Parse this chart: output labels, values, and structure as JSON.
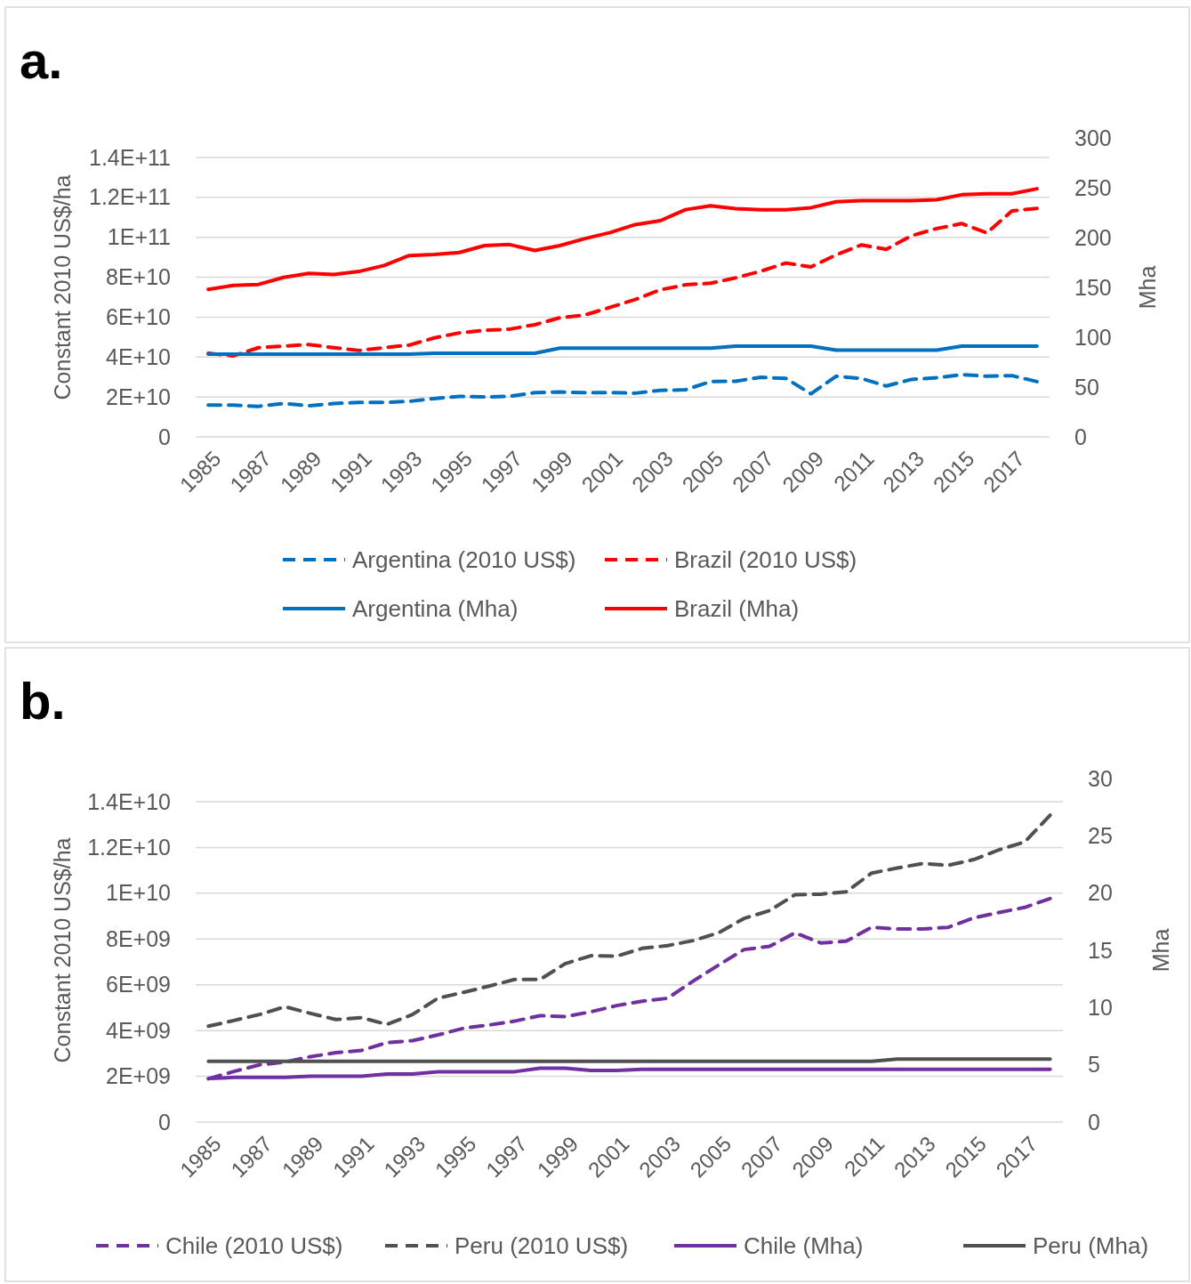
{
  "chart_data": [
    {
      "type": "line",
      "title": "a.",
      "ylabel": "Constant 2010 US$/ha",
      "y2label": "Mha",
      "categories": [
        "1985",
        null,
        "1987",
        null,
        "1989",
        null,
        "1991",
        null,
        "1993",
        null,
        "1995",
        null,
        "1997",
        null,
        "1999",
        null,
        "2001",
        null,
        "2003",
        null,
        "2005",
        null,
        "2007",
        null,
        "2009",
        null,
        "2011",
        null,
        "2013",
        null,
        "2015",
        null,
        "2017",
        null
      ],
      "ylim": [
        0,
        140000000000
      ],
      "yticks": [
        0,
        {
          "value": 20000000000,
          "label": "2E+10"
        },
        {
          "value": 40000000000,
          "label": "4E+10"
        },
        {
          "value": 60000000000,
          "label": "6E+10"
        },
        {
          "value": 80000000000,
          "label": "8E+10"
        },
        {
          "value": 100000000000,
          "label": "1E+11"
        },
        {
          "value": 120000000000,
          "label": "1.2E+11"
        },
        {
          "value": 140000000000,
          "label": "1.4E+11"
        }
      ],
      "y2lim": [
        0,
        300
      ],
      "y2ticks": [
        0,
        50,
        100,
        150,
        200,
        250,
        300
      ],
      "grid": "y",
      "legend": "bottom",
      "marker": "none",
      "series": [
        {
          "name": "Argentina (2010 US$)",
          "color": "#0070c0",
          "line_style": "dashed",
          "values": [
            15900000000,
            15900000000,
            15300000000,
            16700000000,
            15600000000,
            16700000000,
            17300000000,
            17300000000,
            17800000000,
            19200000000,
            20300000000,
            20000000000,
            20300000000,
            22200000000,
            22500000000,
            22200000000,
            22200000000,
            21900000000,
            23300000000,
            23600000000,
            27700000000,
            27900000000,
            29900000000,
            29300000000,
            21600000000,
            30400000000,
            29300000000,
            25500000000,
            28800000000,
            29600000000,
            31200000000,
            30400000000,
            30700000000,
            27700000000
          ]
        },
        {
          "name": "Brazil (2010 US$)",
          "color": "#ff0000",
          "line_style": "dashed",
          "values": [
            41900000000,
            40600000000,
            44700000000,
            45500000000,
            46300000000,
            44700000000,
            43300000000,
            44700000000,
            46000000000,
            49600000000,
            52100000000,
            53400000000,
            54000000000,
            56200000000,
            59700000000,
            61100000000,
            64900000000,
            68800000000,
            73700000000,
            76200000000,
            77000000000,
            79700000000,
            83000000000,
            87100000000,
            85200000000,
            91200000000,
            96200000000,
            94000000000,
            100800000000,
            104400000000,
            106900000000,
            102200000000,
            113200000000,
            114500000000
          ]
        },
        {
          "name": "Argentina (Mha)",
          "color": "#0070c0",
          "line_style": "solid",
          "axis": "y2",
          "values": [
            83,
            83,
            83,
            83,
            83,
            83,
            83,
            83,
            83,
            84,
            84,
            84,
            84,
            84,
            89,
            89,
            89,
            89,
            89,
            89,
            89,
            91,
            91,
            91,
            91,
            87,
            87,
            87,
            87,
            87,
            91,
            91,
            91,
            91
          ]
        },
        {
          "name": "Brazil (Mha)",
          "color": "#ff0000",
          "line_style": "solid",
          "axis": "y2",
          "values": [
            148,
            152,
            153,
            160,
            164,
            163,
            166,
            172,
            182,
            183,
            185,
            192,
            193,
            187,
            192,
            199,
            205,
            213,
            217,
            228,
            232,
            229,
            228,
            228,
            230,
            236,
            237,
            237,
            237,
            238,
            243,
            244,
            244,
            249
          ]
        }
      ]
    },
    {
      "type": "line",
      "title": "b.",
      "ylabel": "Constant 2010 US$/ha",
      "y2label": "Mha",
      "categories": [
        "1985",
        null,
        "1987",
        null,
        "1989",
        null,
        "1991",
        null,
        "1993",
        null,
        "1995",
        null,
        "1997",
        null,
        "1999",
        null,
        "2001",
        null,
        "2003",
        null,
        "2005",
        null,
        "2007",
        null,
        "2009",
        null,
        "2011",
        null,
        "2013",
        null,
        "2015",
        null,
        "2017",
        null
      ],
      "ylim": [
        0,
        14000000000
      ],
      "yticks": [
        0,
        {
          "value": 2000000000,
          "label": "2E+09"
        },
        {
          "value": 4000000000,
          "label": "4E+09"
        },
        {
          "value": 6000000000,
          "label": "6E+09"
        },
        {
          "value": 8000000000,
          "label": "8E+09"
        },
        {
          "value": 10000000000,
          "label": "1E+10"
        },
        {
          "value": 12000000000,
          "label": "1.2E+10"
        },
        {
          "value": 14000000000,
          "label": "1.4E+10"
        }
      ],
      "y2lim": [
        0,
        30
      ],
      "y2ticks": [
        0,
        5,
        10,
        15,
        20,
        25,
        30
      ],
      "grid": "y",
      "legend": "bottom",
      "marker": "none",
      "series": [
        {
          "name": "Chile (2010 US$)",
          "color": "#7030a0",
          "line_style": "dashed",
          "values": [
            1890000000,
            2210000000,
            2500000000,
            2620000000,
            2860000000,
            3030000000,
            3130000000,
            3470000000,
            3560000000,
            3810000000,
            4100000000,
            4240000000,
            4410000000,
            4650000000,
            4610000000,
            4820000000,
            5090000000,
            5280000000,
            5410000000,
            6160000000,
            6860000000,
            7540000000,
            7680000000,
            8270000000,
            7830000000,
            7900000000,
            8510000000,
            8440000000,
            8440000000,
            8510000000,
            8920000000,
            9160000000,
            9380000000,
            9770000000
          ]
        },
        {
          "name": "Peru (2010 US$)",
          "color": "#505050",
          "line_style": "dashed",
          "values": [
            4190000000,
            4440000000,
            4700000000,
            5040000000,
            4750000000,
            4480000000,
            4560000000,
            4270000000,
            4700000000,
            5410000000,
            5670000000,
            5940000000,
            6230000000,
            6230000000,
            6930000000,
            7270000000,
            7250000000,
            7590000000,
            7710000000,
            7930000000,
            8270000000,
            8900000000,
            9240000000,
            9940000000,
            9960000000,
            10060000000,
            10880000000,
            11100000000,
            11300000000,
            11220000000,
            11470000000,
            11900000000,
            12240000000,
            13410000000
          ]
        },
        {
          "name": "Chile (Mha)",
          "color": "#7030a0",
          "line_style": "solid",
          "axis": "y2",
          "values": [
            3.8,
            3.9,
            3.9,
            3.9,
            4,
            4,
            4,
            4.2,
            4.2,
            4.4,
            4.4,
            4.4,
            4.4,
            4.7,
            4.7,
            4.5,
            4.5,
            4.6,
            4.6,
            4.6,
            4.6,
            4.6,
            4.6,
            4.6,
            4.6,
            4.6,
            4.6,
            4.6,
            4.6,
            4.6,
            4.6,
            4.6,
            4.6,
            4.6
          ]
        },
        {
          "name": "Peru (Mha)",
          "color": "#505050",
          "line_style": "solid",
          "axis": "y2",
          "values": [
            5.3,
            5.3,
            5.3,
            5.3,
            5.3,
            5.3,
            5.3,
            5.3,
            5.3,
            5.3,
            5.3,
            5.3,
            5.3,
            5.3,
            5.3,
            5.3,
            5.3,
            5.3,
            5.3,
            5.3,
            5.3,
            5.3,
            5.3,
            5.3,
            5.3,
            5.3,
            5.3,
            5.5,
            5.5,
            5.5,
            5.5,
            5.5,
            5.5,
            5.5
          ]
        }
      ]
    }
  ]
}
